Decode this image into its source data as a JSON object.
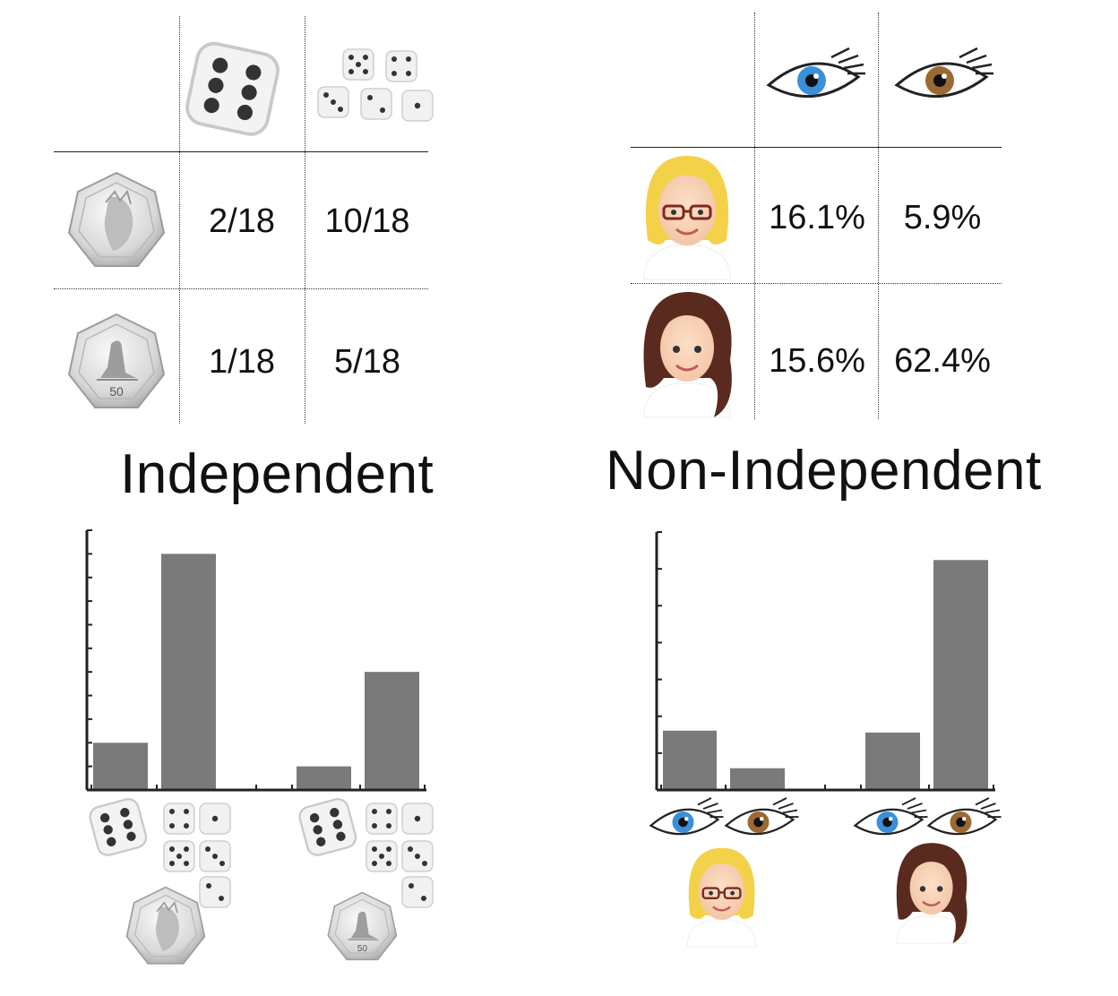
{
  "left_table": {
    "rows": [
      {
        "coin": "heads",
        "cells": [
          "2/18",
          "10/18"
        ]
      },
      {
        "coin": "tails",
        "cells": [
          "1/18",
          "5/18"
        ]
      }
    ],
    "columns": [
      "one-die-six",
      "five-dice-other"
    ],
    "title": "Independent"
  },
  "right_table": {
    "rows": [
      {
        "person": "blonde-woman",
        "cells": [
          "16.1%",
          "5.9%"
        ]
      },
      {
        "person": "brunette-woman",
        "cells": [
          "15.6%",
          "62.4%"
        ]
      }
    ],
    "columns": [
      "blue-eye",
      "brown-eye"
    ],
    "title": "Non-Independent"
  },
  "icons": {
    "die": "die-icon",
    "coin_heads": "coin-heads-icon",
    "coin_tails": "coin-tails-icon",
    "blue_eye": "blue-eye-icon",
    "brown_eye": "brown-eye-icon",
    "blonde": "blonde-woman-icon",
    "brunette": "brunette-woman-icon"
  },
  "colors": {
    "bar": "#7a7a7a",
    "blue_iris": "#3a8fd8",
    "brown_iris": "#9a6a33",
    "blonde_hair": "#f3d24a",
    "brunette_hair": "#5a2a1e"
  },
  "chart_data": [
    {
      "type": "bar",
      "title": "",
      "xlabel": "",
      "ylabel": "",
      "categories": [
        "coin-heads/die-six",
        "coin-heads/die-other",
        "coin-tails/die-six",
        "coin-tails/die-other"
      ],
      "values": [
        2,
        10,
        1,
        5
      ],
      "ylim": [
        0,
        11
      ],
      "y_ticks": 11
    },
    {
      "type": "bar",
      "title": "",
      "xlabel": "",
      "ylabel": "",
      "categories": [
        "blonde/blue-eye",
        "blonde/brown-eye",
        "brunette/blue-eye",
        "brunette/brown-eye"
      ],
      "values": [
        16.1,
        5.9,
        15.6,
        62.4
      ],
      "ylim": [
        0,
        70
      ],
      "y_ticks": 7
    }
  ]
}
